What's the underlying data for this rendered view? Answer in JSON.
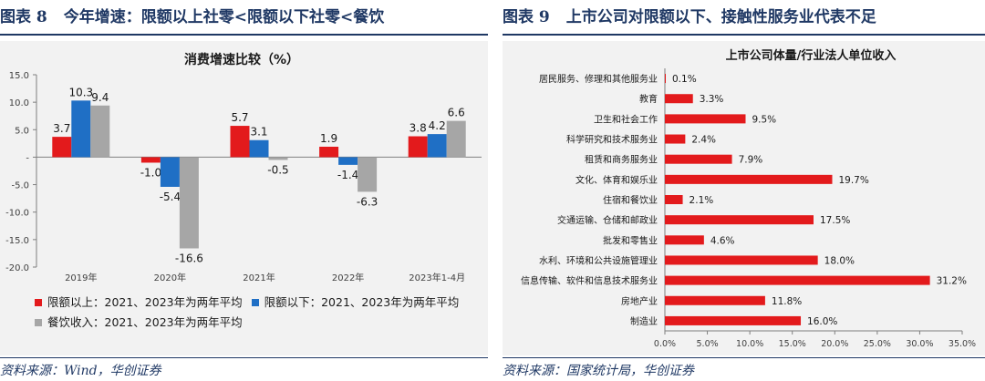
{
  "left": {
    "figure_label": "图表 8",
    "figure_title": "今年增速：限额以上社零<限额以下社零<餐饮",
    "source": "资料来源：Wind，华创证券",
    "colors": {
      "series1": "#e31a1c",
      "series2": "#1f6fc5",
      "series3": "#a6a6a6"
    },
    "chart_data": {
      "type": "bar",
      "title": "消费增速比较（%）",
      "categories": [
        "2019年",
        "2020年",
        "2021年",
        "2022年",
        "2023年1-4月"
      ],
      "series": [
        {
          "name": "限额以上：2021、2023年为两年平均",
          "values": [
            3.7,
            -1.0,
            5.7,
            1.9,
            3.8
          ]
        },
        {
          "name": "限额以下：2021、2023年为两年平均",
          "values": [
            10.3,
            -5.4,
            3.1,
            -1.4,
            4.2
          ]
        },
        {
          "name": "餐饮收入：2021、2023年为两年平均",
          "values": [
            9.4,
            -16.6,
            -0.5,
            -6.3,
            6.6
          ]
        }
      ],
      "ylim": [
        -20,
        15
      ],
      "yticks": [
        "15.0",
        "10.0",
        "5.0",
        "-",
        "-5.0",
        "-10.0",
        "-15.0",
        "-20.0"
      ],
      "data_labels": [
        [
          "3.7",
          "-1.0",
          "5.7",
          "1.9",
          "3.8"
        ],
        [
          "10.3",
          "-5.4",
          "3.1",
          "-1.4",
          "4.2"
        ],
        [
          "9.4",
          "-16.6",
          "-0.5",
          "-6.3",
          "6.6"
        ]
      ],
      "grid": false
    }
  },
  "right": {
    "figure_label": "图表 9",
    "figure_title": "上市公司对限额以下、接触性服务业代表不足",
    "source": "资料来源：国家统计局，华创证券",
    "colors": {
      "bar": "#e31a1c"
    },
    "chart_data": {
      "type": "bar",
      "orientation": "horizontal",
      "title": "上市公司体量/行业法人单位收入",
      "categories": [
        "居民服务、修理和其他服务业",
        "教育",
        "卫生和社会工作",
        "科学研究和技术服务业",
        "租赁和商务服务业",
        "文化、体育和娱乐业",
        "住宿和餐饮业",
        "交通运输、仓储和邮政业",
        "批发和零售业",
        "水利、环境和公共设施管理业",
        "信息传输、软件和信息技术服务业",
        "房地产业",
        "制造业"
      ],
      "values": [
        0.1,
        3.3,
        9.5,
        2.4,
        7.9,
        19.7,
        2.1,
        17.5,
        4.6,
        18.0,
        31.2,
        11.8,
        16.0
      ],
      "data_labels": [
        "0.1%",
        "3.3%",
        "9.5%",
        "2.4%",
        "7.9%",
        "19.7%",
        "2.1%",
        "17.5%",
        "4.6%",
        "18.0%",
        "31.2%",
        "11.8%",
        "16.0%"
      ],
      "xlim": [
        0,
        35
      ],
      "xticks": [
        "0.0%",
        "5.0%",
        "10.0%",
        "15.0%",
        "20.0%",
        "25.0%",
        "30.0%",
        "35.0%"
      ],
      "grid": false
    }
  }
}
